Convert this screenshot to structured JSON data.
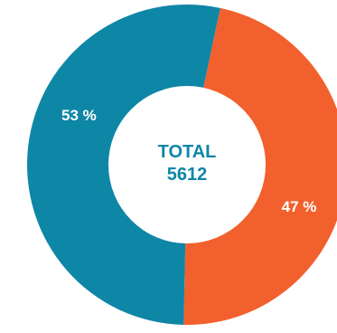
{
  "chart_data": {
    "type": "pie",
    "variant": "donut",
    "slices": [
      {
        "label": "53 %",
        "value": 53,
        "color": "#0E86A6"
      },
      {
        "label": "47 %",
        "value": 47,
        "color": "#F2602D"
      }
    ],
    "center": {
      "title": "TOTAL",
      "value": "5612",
      "color": "#0E86A6"
    },
    "label_color": "#ffffff",
    "start_angle_deg": 12
  }
}
